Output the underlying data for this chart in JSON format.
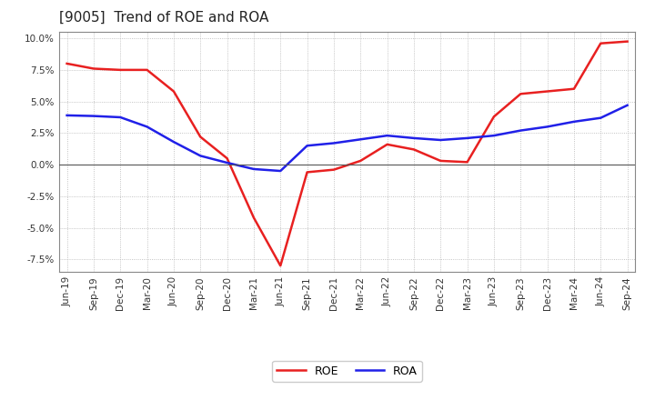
{
  "title": "[9005]  Trend of ROE and ROA",
  "x_labels": [
    "Jun-19",
    "Sep-19",
    "Dec-19",
    "Mar-20",
    "Jun-20",
    "Sep-20",
    "Dec-20",
    "Mar-21",
    "Jun-21",
    "Sep-21",
    "Dec-21",
    "Mar-22",
    "Jun-22",
    "Sep-22",
    "Dec-22",
    "Mar-23",
    "Jun-23",
    "Sep-23",
    "Dec-23",
    "Mar-24",
    "Jun-24",
    "Sep-24"
  ],
  "roe": [
    8.0,
    7.6,
    7.5,
    7.5,
    5.8,
    2.2,
    0.5,
    -4.2,
    -8.0,
    -0.6,
    -0.4,
    0.3,
    1.6,
    1.2,
    0.3,
    0.2,
    3.8,
    5.6,
    5.8,
    6.0,
    9.6,
    9.75
  ],
  "roa": [
    3.9,
    3.85,
    3.75,
    3.0,
    1.8,
    0.7,
    0.15,
    -0.35,
    -0.5,
    1.5,
    1.7,
    2.0,
    2.3,
    2.1,
    1.95,
    2.1,
    2.3,
    2.7,
    3.0,
    3.4,
    3.7,
    4.7
  ],
  "roe_color": "#e82020",
  "roa_color": "#2020e8",
  "ylim_min": -8.5,
  "ylim_max": 10.5,
  "yticks": [
    -7.5,
    -5.0,
    -2.5,
    0.0,
    2.5,
    5.0,
    7.5,
    10.0
  ],
  "background_color": "#ffffff",
  "plot_bg_color": "#ffffff",
  "grid_color": "#aaaaaa",
  "legend_roe": "ROE",
  "legend_roa": "ROA",
  "title_fontsize": 11,
  "tick_fontsize": 7.5,
  "linewidth": 1.8
}
